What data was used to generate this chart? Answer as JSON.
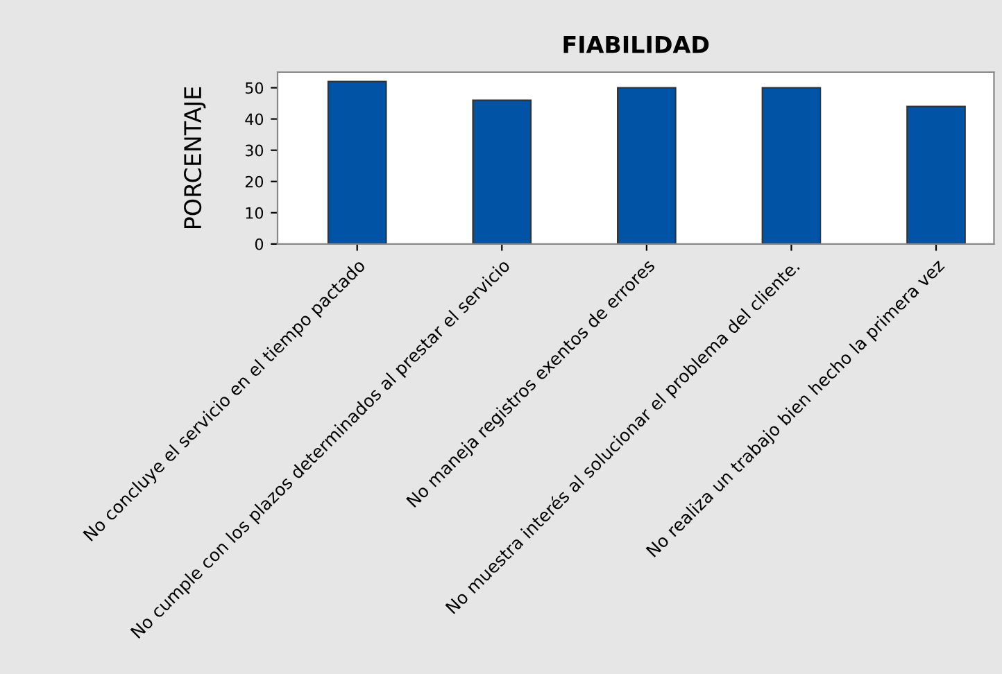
{
  "chart_data": {
    "type": "bar",
    "title": "FIABILIDAD",
    "ylabel": "PORCENTAJE",
    "categories": [
      "No concluye el servicio en el tiempo pactado",
      "No cumple con los plazos determinados al prestar el servicio",
      "No maneja registros exentos de errores",
      "No muestra interés al solucionar el problema del cliente.",
      "No realiza un trabajo bien hecho la primera vez"
    ],
    "values": [
      52,
      46,
      50,
      50,
      44
    ],
    "color": "#0053a5",
    "ylim": [
      0,
      55
    ],
    "yticks": [
      0,
      10,
      20,
      30,
      40,
      50
    ],
    "grid": false
  }
}
